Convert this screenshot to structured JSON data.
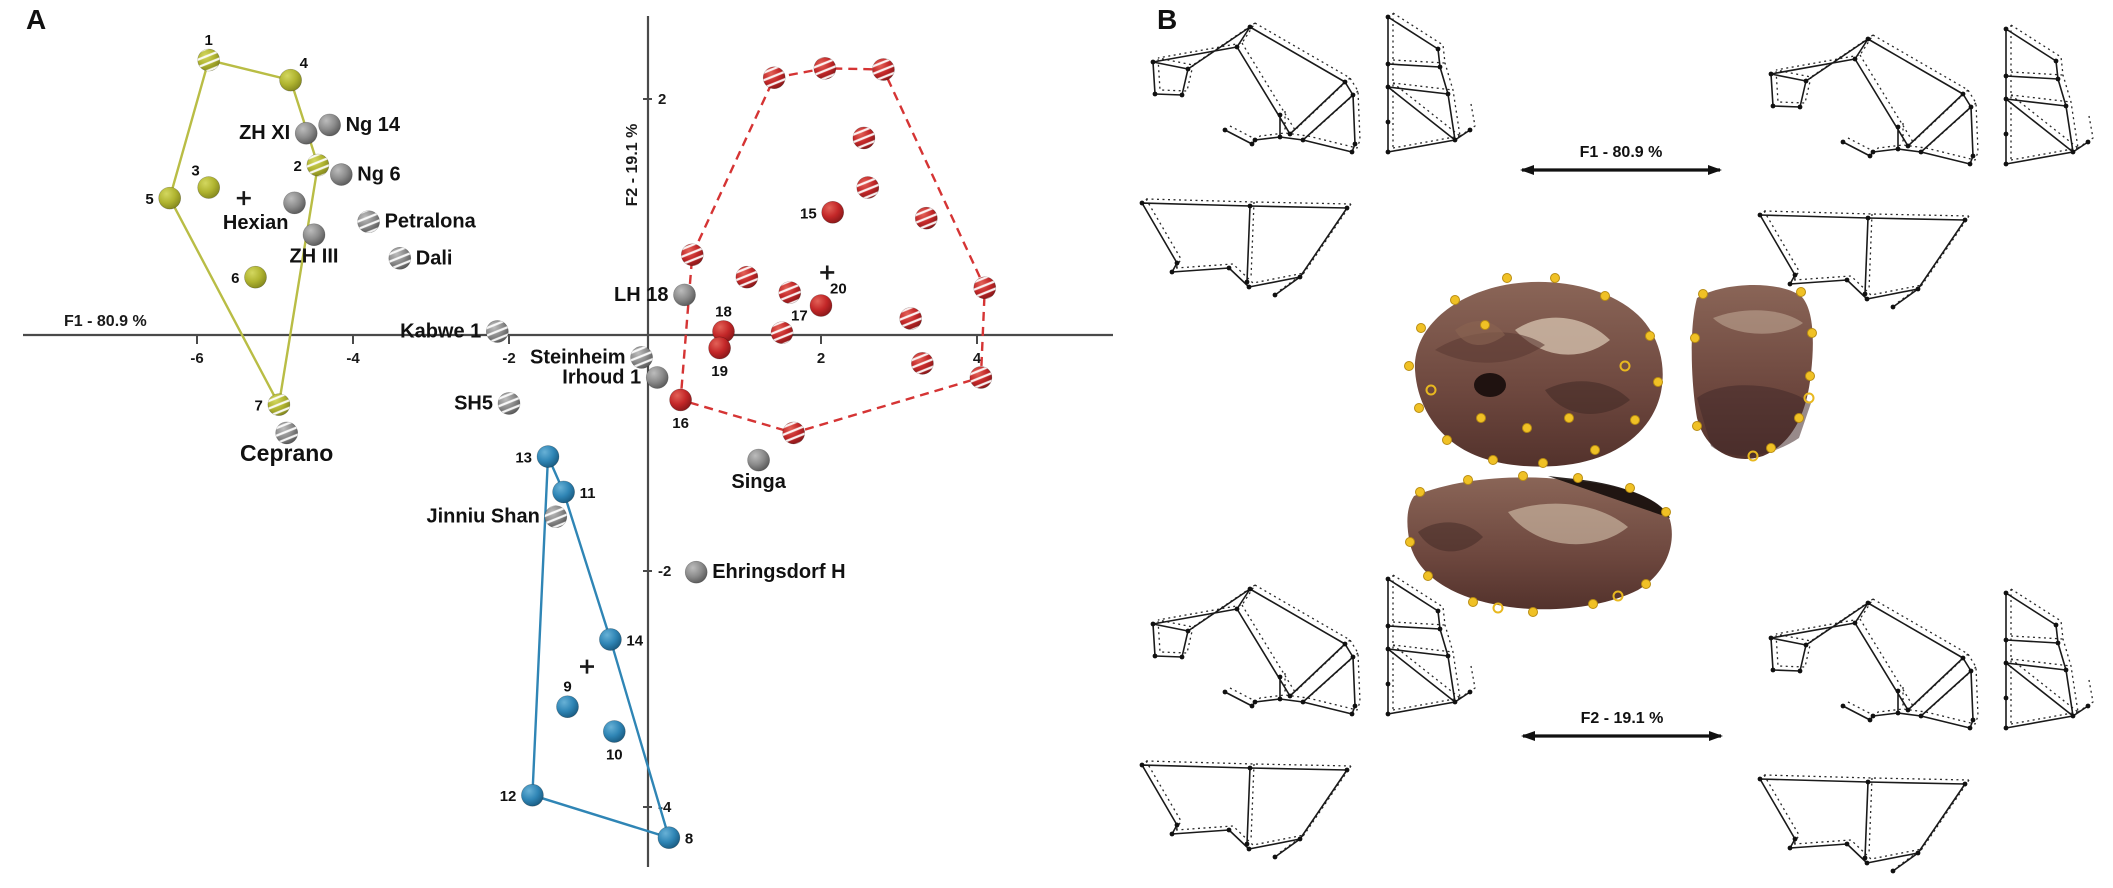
{
  "figure": {
    "panel_a_label": "A",
    "panel_b_label": "B"
  },
  "chart_data": {
    "type": "scatter",
    "title": "",
    "xlabel": "F1 - 80.9 %",
    "ylabel": "F2 - 19.1 %",
    "xlim": [
      -8.2,
      5.7
    ],
    "ylim": [
      -4.6,
      2.7
    ],
    "grid": false,
    "x_ticks": [
      -6,
      -4,
      -2,
      2,
      4
    ],
    "y_ticks": [
      2,
      -2,
      -4
    ],
    "groups": [
      {
        "id": "olive",
        "color": "#aeb232",
        "hull": {
          "style": "solid",
          "color": "#b9bd45",
          "points": [
            [
              -5.85,
              2.33
            ],
            [
              -4.8,
              2.16
            ],
            [
              -4.45,
              1.44
            ],
            [
              -4.95,
              -0.59
            ],
            [
              -6.35,
              1.16
            ]
          ]
        },
        "centroid": [
          -5.4,
          1.16
        ],
        "points": [
          {
            "label": "1",
            "x": -5.85,
            "y": 2.33,
            "hatched": true,
            "label_pos": "above"
          },
          {
            "label": "4",
            "x": -4.8,
            "y": 2.16,
            "hatched": false,
            "label_pos": "above-right"
          },
          {
            "label": "2",
            "x": -4.45,
            "y": 1.44,
            "hatched": true,
            "label_pos": "left"
          },
          {
            "label": "3",
            "x": -5.85,
            "y": 1.25,
            "hatched": false,
            "label_pos": "above-left"
          },
          {
            "label": "5",
            "x": -6.35,
            "y": 1.16,
            "hatched": false,
            "label_pos": "left"
          },
          {
            "label": "6",
            "x": -5.25,
            "y": 0.49,
            "hatched": false,
            "label_pos": "left"
          },
          {
            "label": "7",
            "x": -4.95,
            "y": -0.59,
            "hatched": true,
            "label_pos": "left"
          }
        ]
      },
      {
        "id": "red",
        "color": "#c32728",
        "hull": {
          "style": "dashed",
          "color": "#d53434",
          "points": [
            [
              0.35,
              0.68
            ],
            [
              1.4,
              2.18
            ],
            [
              2.05,
              2.26
            ],
            [
              2.8,
              2.25
            ],
            [
              4.1,
              0.4
            ],
            [
              4.05,
              -0.36
            ],
            [
              1.65,
              -0.83
            ],
            [
              0.2,
              -0.55
            ]
          ]
        },
        "centroid": [
          2.08,
          0.53
        ],
        "points": [
          {
            "label": "",
            "x": 1.4,
            "y": 2.18,
            "hatched": true
          },
          {
            "label": "",
            "x": 2.05,
            "y": 2.26,
            "hatched": true
          },
          {
            "label": "",
            "x": 2.8,
            "y": 2.25,
            "hatched": true
          },
          {
            "label": "",
            "x": 2.55,
            "y": 1.67,
            "hatched": true
          },
          {
            "label": "",
            "x": 2.6,
            "y": 1.25,
            "hatched": true
          },
          {
            "label": "15",
            "x": 2.15,
            "y": 1.04,
            "hatched": false,
            "label_pos": "left"
          },
          {
            "label": "",
            "x": 3.35,
            "y": 0.99,
            "hatched": true
          },
          {
            "label": "",
            "x": 0.35,
            "y": 0.68,
            "hatched": true
          },
          {
            "label": "",
            "x": 1.05,
            "y": 0.49,
            "hatched": true
          },
          {
            "label": "",
            "x": 1.6,
            "y": 0.36,
            "hatched": true
          },
          {
            "label": "",
            "x": 4.1,
            "y": 0.4,
            "hatched": true
          },
          {
            "label": "20",
            "x": 2.0,
            "y": 0.25,
            "hatched": false,
            "label_pos": "above-right"
          },
          {
            "label": "",
            "x": 3.15,
            "y": 0.14,
            "hatched": true
          },
          {
            "label": "18",
            "x": 0.75,
            "y": 0.03,
            "hatched": false,
            "label_pos": "above"
          },
          {
            "label": "17",
            "x": 1.5,
            "y": 0.02,
            "hatched": true,
            "label_pos": "above-right"
          },
          {
            "label": "19",
            "x": 0.7,
            "y": -0.11,
            "hatched": false,
            "label_pos": "below"
          },
          {
            "label": "",
            "x": 3.3,
            "y": -0.24,
            "hatched": true
          },
          {
            "label": "16",
            "x": 0.2,
            "y": -0.55,
            "hatched": false,
            "label_pos": "below"
          },
          {
            "label": "",
            "x": 4.05,
            "y": -0.36,
            "hatched": true
          },
          {
            "label": "",
            "x": 1.65,
            "y": -0.83,
            "hatched": true
          }
        ]
      },
      {
        "id": "blue",
        "color": "#2f85b5",
        "hull": {
          "style": "solid",
          "color": "#2f85b5",
          "points": [
            [
              -1.5,
              -1.03
            ],
            [
              -1.3,
              -1.33
            ],
            [
              -0.7,
              -2.58
            ],
            [
              0.05,
              -4.26
            ],
            [
              -1.7,
              -3.9
            ]
          ]
        },
        "centroid": [
          -1.0,
          -2.81
        ],
        "points": [
          {
            "label": "13",
            "x": -1.5,
            "y": -1.03,
            "hatched": false,
            "label_pos": "left"
          },
          {
            "label": "11",
            "x": -1.3,
            "y": -1.33,
            "hatched": false,
            "label_pos": "right"
          },
          {
            "label": "14",
            "x": -0.7,
            "y": -2.58,
            "hatched": false,
            "label_pos": "right"
          },
          {
            "label": "9",
            "x": -1.25,
            "y": -3.15,
            "hatched": false,
            "label_pos": "above"
          },
          {
            "label": "10",
            "x": -0.65,
            "y": -3.36,
            "hatched": false,
            "label_pos": "below"
          },
          {
            "label": "12",
            "x": -1.7,
            "y": -3.9,
            "hatched": false,
            "label_pos": "left"
          },
          {
            "label": "8",
            "x": 0.05,
            "y": -4.26,
            "hatched": false,
            "label_pos": "right"
          }
        ]
      },
      {
        "id": "gray",
        "color": "#8b8b8b",
        "hull": null,
        "centroid": null,
        "points": [
          {
            "label": "ZH XI",
            "x": -4.6,
            "y": 1.71,
            "hatched": false,
            "label_pos": "left"
          },
          {
            "label": "Ng 14",
            "x": -4.3,
            "y": 1.78,
            "hatched": false,
            "label_pos": "right"
          },
          {
            "label": "Ng 6",
            "x": -4.15,
            "y": 1.36,
            "hatched": false,
            "label_pos": "right"
          },
          {
            "label": "Hexian",
            "x": -4.75,
            "y": 1.12,
            "hatched": false,
            "label_pos": "below-left"
          },
          {
            "label": "Petralona",
            "x": -3.8,
            "y": 0.96,
            "hatched": true,
            "label_pos": "right"
          },
          {
            "label": "ZH III",
            "x": -4.5,
            "y": 0.85,
            "hatched": false,
            "label_pos": "below"
          },
          {
            "label": "Dali",
            "x": -3.4,
            "y": 0.65,
            "hatched": true,
            "label_pos": "right"
          },
          {
            "label": "Ceprano",
            "x": -4.85,
            "y": -0.83,
            "hatched": true,
            "label_pos": "below",
            "emphasis": true
          },
          {
            "label": "Kabwe 1",
            "x": -2.15,
            "y": 0.03,
            "hatched": true,
            "label_pos": "left"
          },
          {
            "label": "Steinheim",
            "x": -0.3,
            "y": -0.19,
            "hatched": true,
            "label_pos": "left"
          },
          {
            "label": "SH5",
            "x": -2.0,
            "y": -0.58,
            "hatched": true,
            "label_pos": "left"
          },
          {
            "label": "Irhoud 1",
            "x": -0.1,
            "y": -0.36,
            "hatched": false,
            "label_pos": "left"
          },
          {
            "label": "LH 18",
            "x": 0.25,
            "y": 0.34,
            "hatched": false,
            "label_pos": "left"
          },
          {
            "label": "Singa",
            "x": 1.2,
            "y": -1.06,
            "hatched": false,
            "label_pos": "below"
          },
          {
            "label": "Jinniu Shan",
            "x": -1.4,
            "y": -1.54,
            "hatched": true,
            "label_pos": "left"
          },
          {
            "label": "Ehringsdorf H",
            "x": 0.4,
            "y": -2.01,
            "hatched": false,
            "label_pos": "right"
          }
        ]
      }
    ]
  },
  "panel_b": {
    "f1_arrow_label": "F1 - 80.9 %",
    "f2_arrow_label": "F2 - 19.1 %",
    "landmark_color": "#f0c125"
  }
}
